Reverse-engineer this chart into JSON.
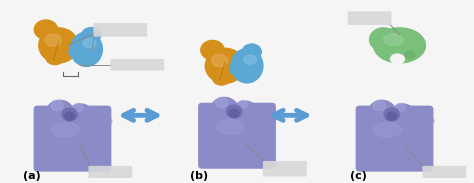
{
  "background_color": "#f5f5f5",
  "panel_labels": [
    "(a)",
    "(b)",
    "(c)"
  ],
  "panel_label_fontsize": 8,
  "arrow_color": "#5b9bd5",
  "enzyme_color_main": "#8b8bc8",
  "enzyme_color_light": "#a0a0d8",
  "enzyme_color_dark": "#7070b0",
  "substrate_orange_main": "#d4901a",
  "substrate_orange_light": "#e8b060",
  "substrate_blue_main": "#5ba8d4",
  "substrate_blue_light": "#85c4e8",
  "product_green_main": "#7abf7a",
  "product_green_light": "#a0d4a0",
  "label_box_color": "#d8d8d8",
  "line_color": "#888888",
  "figsize": [
    4.74,
    1.83
  ],
  "dpi": 100
}
